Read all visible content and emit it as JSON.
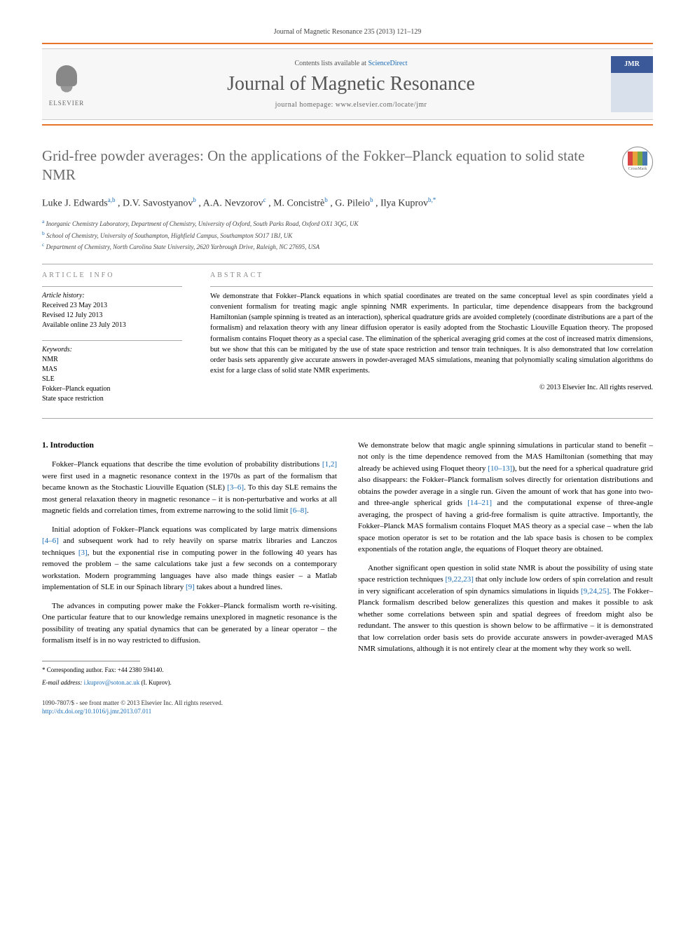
{
  "journal": {
    "header_citation": "Journal of Magnetic Resonance 235 (2013) 121–129",
    "contents_label_prefix": "Contents lists available at ",
    "contents_link": "ScienceDirect",
    "name": "Journal of Magnetic Resonance",
    "homepage_label": "journal homepage: www.elsevier.com/locate/jmr",
    "elsevier_label": "ELSEVIER",
    "cover_label": "JMR"
  },
  "article": {
    "title": "Grid-free powder averages: On the applications of the Fokker–Planck equation to solid state NMR",
    "crossmark_label": "CrossMark",
    "authors_html": "Luke J. Edwards",
    "author_1": "Luke J. Edwards",
    "sup_1": "a,b",
    "author_2": ", D.V. Savostyanov",
    "sup_2": "b",
    "author_3": ", A.A. Nevzorov",
    "sup_3": "c",
    "author_4": ", M. Concistrè",
    "sup_4": "b",
    "author_5": ", G. Pileio",
    "sup_5": "b",
    "author_6": ", Ilya Kuprov",
    "sup_6": "b,*",
    "affil_a_sup": "a",
    "affil_a": "Inorganic Chemistry Laboratory, Department of Chemistry, University of Oxford, South Parks Road, Oxford OX1 3QG, UK",
    "affil_b_sup": "b",
    "affil_b": "School of Chemistry, University of Southampton, Highfield Campus, Southampton SO17 1BJ, UK",
    "affil_c_sup": "c",
    "affil_c": "Department of Chemistry, North Carolina State University, 2620 Yarbrough Drive, Raleigh, NC 27695, USA"
  },
  "info": {
    "heading": "ARTICLE INFO",
    "history_label": "Article history:",
    "received": "Received 23 May 2013",
    "revised": "Revised 12 July 2013",
    "online": "Available online 23 July 2013",
    "keywords_label": "Keywords:",
    "kw1": "NMR",
    "kw2": "MAS",
    "kw3": "SLE",
    "kw4": "Fokker–Planck equation",
    "kw5": "State space restriction"
  },
  "abstract": {
    "heading": "ABSTRACT",
    "text": "We demonstrate that Fokker–Planck equations in which spatial coordinates are treated on the same conceptual level as spin coordinates yield a convenient formalism for treating magic angle spinning NMR experiments. In particular, time dependence disappears from the background Hamiltonian (sample spinning is treated as an interaction), spherical quadrature grids are avoided completely (coordinate distributions are a part of the formalism) and relaxation theory with any linear diffusion operator is easily adopted from the Stochastic Liouville Equation theory. The proposed formalism contains Floquet theory as a special case. The elimination of the spherical averaging grid comes at the cost of increased matrix dimensions, but we show that this can be mitigated by the use of state space restriction and tensor train techniques. It is also demonstrated that low correlation order basis sets apparently give accurate answers in powder-averaged MAS simulations, meaning that polynomially scaling simulation algorithms do exist for a large class of solid state NMR experiments.",
    "copyright": "© 2013 Elsevier Inc. All rights reserved."
  },
  "body": {
    "section_1_heading": "1. Introduction",
    "p1a": "Fokker–Planck equations that describe the time evolution of probability distributions ",
    "p1_ref1": "[1,2]",
    "p1b": " were first used in a magnetic resonance context in the 1970s as part of the formalism that became known as the Stochastic Liouville Equation (SLE) ",
    "p1_ref2": "[3–6]",
    "p1c": ". To this day SLE remains the most general relaxation theory in magnetic resonance – it is non-perturbative and works at all magnetic fields and correlation times, from extreme narrowing to the solid limit ",
    "p1_ref3": "[6–8]",
    "p1d": ".",
    "p2a": "Initial adoption of Fokker–Planck equations was complicated by large matrix dimensions ",
    "p2_ref1": "[4–6]",
    "p2b": " and subsequent work had to rely heavily on sparse matrix libraries and Lanczos techniques ",
    "p2_ref2": "[3]",
    "p2c": ", but the exponential rise in computing power in the following 40 years has removed the problem – the same calculations take just a few seconds on a contemporary workstation. Modern programming languages have also made things easier – a Matlab implementation of SLE in our Spinach library ",
    "p2_ref3": "[9]",
    "p2d": " takes about a hundred lines.",
    "p3": "The advances in computing power make the Fokker–Planck formalism worth re-visiting. One particular feature that to our knowledge remains unexplored in magnetic resonance is the possibility of treating any spatial dynamics that can be generated by a linear operator – the formalism itself is in no way restricted to diffusion.",
    "p4a": "We demonstrate below that magic angle spinning simulations in particular stand to benefit – not only is the time dependence removed from the MAS Hamiltonian (something that may already be achieved using Floquet theory ",
    "p4_ref1": "[10–13]",
    "p4b": "), but the need for a spherical quadrature grid also disappears: the Fokker–Planck formalism solves directly for orientation distributions and obtains the powder average in a single run. Given the amount of work that has gone into two- and three-angle spherical grids ",
    "p4_ref2": "[14–21]",
    "p4c": " and the computational expense of three-angle averaging, the prospect of having a grid-free formalism is quite attractive. Importantly, the Fokker–Planck MAS formalism contains Floquet MAS theory as a special case – when the lab space motion operator is set to be rotation and the lab space basis is chosen to be complex exponentials of the rotation angle, the equations of Floquet theory are obtained.",
    "p5a": "Another significant open question in solid state NMR is about the possibility of using state space restriction techniques ",
    "p5_ref1": "[9,22,23]",
    "p5b": " that only include low orders of spin correlation and result in very significant acceleration of spin dynamics simulations in liquids ",
    "p5_ref2": "[9,24,25]",
    "p5c": ". The Fokker–Planck formalism described below generalizes this question and makes it possible to ask whether some correlations between spin and spatial degrees of freedom might also be redundant. The answer to this question is shown below to be affirmative – it is demonstrated that low correlation order basis sets do provide accurate answers in powder-averaged MAS NMR simulations, although it is not entirely clear at the moment why they work so well."
  },
  "footer": {
    "corr_label": "* Corresponding author. Fax: +44 2380 594140.",
    "email_label": "E-mail address: ",
    "email": "i.kuprov@soton.ac.uk",
    "email_who": " (I. Kuprov).",
    "issn_line": "1090-7807/$ - see front matter © 2013 Elsevier Inc. All rights reserved.",
    "doi_label": "http://dx.doi.org/10.1016/j.jmr.2013.07.011"
  },
  "colors": {
    "accent_orange": "#e8742c",
    "link_blue": "#1a6bb3",
    "heading_gray": "#6a6a6a"
  }
}
